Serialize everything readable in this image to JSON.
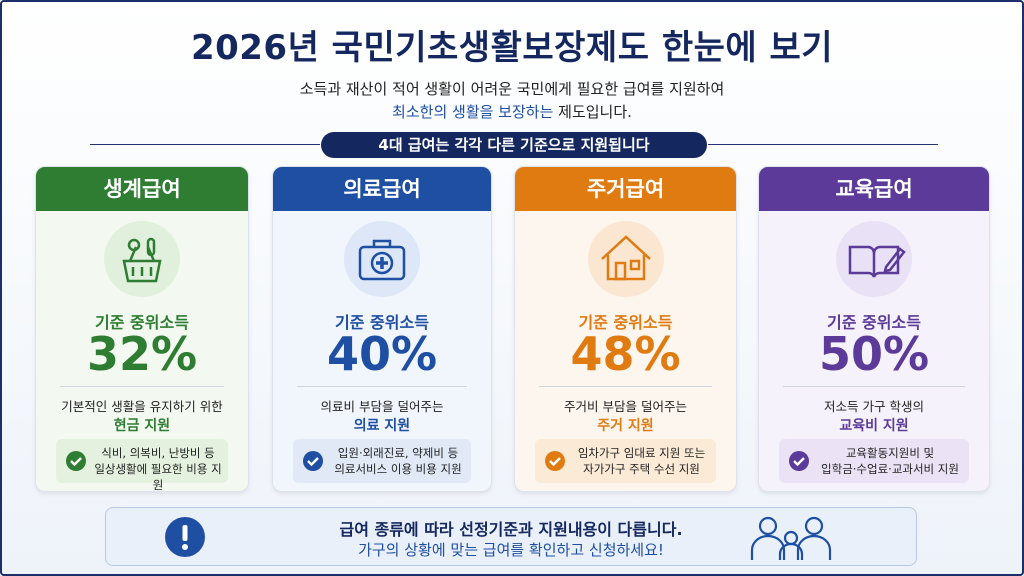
{
  "header": {
    "title": "2026년 국민기초생활보장제도 한눈에 보기",
    "subtitle_line1": "소득과 재산이 적어 생활이 어려운 국민에게 필요한 급여를 지원하여",
    "subtitle_line2_emphasis": "최소한의 생활을 보장하는",
    "subtitle_line2_rest": " 제도입니다.",
    "banner": "4대 급여는 각각 다른 기준으로 지원됩니다"
  },
  "cards": [
    {
      "title": "생계급여",
      "criterion": "기준 중위소득",
      "percent": "32%",
      "description": "기본적인 생활을 유지하기 위한",
      "highlight": "현금 지원",
      "bullet_line1": "식비, 의복비, 난방비 등",
      "bullet_line2": "일상생활에 필요한 비용 지원"
    },
    {
      "title": "의료급여",
      "criterion": "기준 중위소득",
      "percent": "40%",
      "description": "의료비 부담을 덜어주는",
      "highlight": "의료 지원",
      "bullet_line1": "입원·외래진료, 약제비 등",
      "bullet_line2": "의료서비스 이용 비용 지원"
    },
    {
      "title": "주거급여",
      "criterion": "기준 중위소득",
      "percent": "48%",
      "description": "주거비 부담을 덜어주는",
      "highlight": "주거 지원",
      "bullet_line1": "임차가구 임대료 지원 또는",
      "bullet_line2": "자가가구 주택 수선 지원"
    },
    {
      "title": "교육급여",
      "criterion": "기준 중위소득",
      "percent": "50%",
      "description": "저소득 가구 학생의",
      "highlight": "교육비 지원",
      "bullet_line1": "교육활동지원비 및",
      "bullet_line2": "입학금·수업료·교과서비 지원"
    }
  ],
  "footer": {
    "line1": "급여 종류에 따라 선정기준과 지원내용이 다릅니다.",
    "line2": "가구의 상황에 맞는 급여를 확인하고 신청하세요!"
  }
}
